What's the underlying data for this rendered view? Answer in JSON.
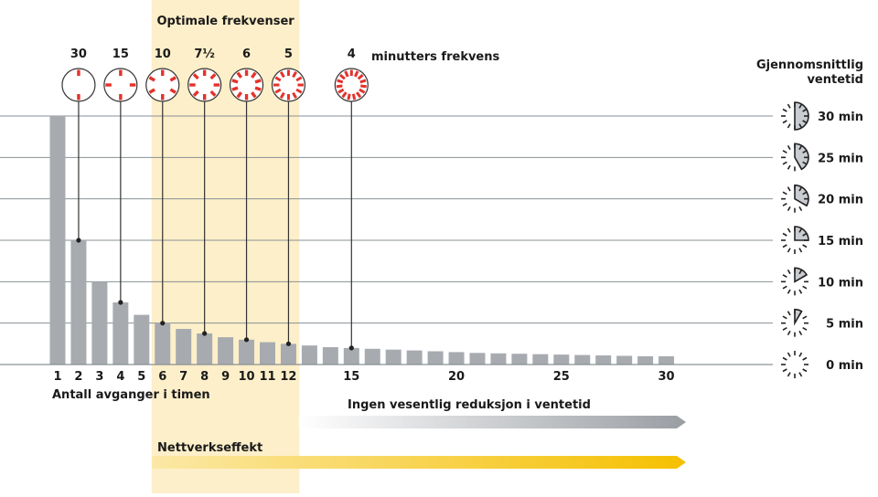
{
  "chart_data": {
    "type": "bar",
    "title": "",
    "xlabel": "Antall avganger i timen",
    "ylabel": "Gjennomsnittlig ventetid",
    "ylim": [
      0,
      30
    ],
    "x": [
      1,
      2,
      3,
      4,
      5,
      6,
      7,
      8,
      9,
      10,
      11,
      12,
      13,
      14,
      15,
      16,
      17,
      18,
      19,
      20,
      21,
      22,
      23,
      24,
      25,
      26,
      27,
      28,
      29,
      30
    ],
    "values": [
      30,
      15,
      10,
      7.5,
      6,
      5,
      4.3,
      3.75,
      3.3,
      3,
      2.7,
      2.5,
      2.3,
      2.1,
      2,
      1.9,
      1.8,
      1.7,
      1.6,
      1.5,
      1.4,
      1.35,
      1.3,
      1.25,
      1.2,
      1.15,
      1.1,
      1.05,
      1.0,
      1.0
    ],
    "x_ticks": [
      "1",
      "2",
      "3",
      "4",
      "5",
      "6",
      "7",
      "8",
      "9",
      "10",
      "11",
      "12",
      "15",
      "20",
      "25",
      "30"
    ],
    "y_ticks": [
      "0 min",
      "5 min",
      "10 min",
      "15 min",
      "20 min",
      "25 min",
      "30 min"
    ],
    "y_tick_values": [
      0,
      5,
      10,
      15,
      20,
      25,
      30
    ],
    "grid": true,
    "bar_color": "#a7abb0",
    "highlight_band": {
      "from": 6,
      "to": 12,
      "label": "Optimale frekvenser",
      "color": "#fdefc9"
    },
    "frequency_markers": [
      {
        "label": "30",
        "x": 2,
        "y": 15,
        "spokes": 2
      },
      {
        "label": "15",
        "x": 4,
        "y": 7.5,
        "spokes": 4
      },
      {
        "label": "10",
        "x": 6,
        "y": 5,
        "spokes": 6
      },
      {
        "label": "7½",
        "x": 8,
        "y": 3.75,
        "spokes": 8
      },
      {
        "label": "6",
        "x": 10,
        "y": 3,
        "spokes": 10
      },
      {
        "label": "5",
        "x": 12,
        "y": 2.5,
        "spokes": 12
      },
      {
        "label": "4",
        "x": 15,
        "y": 2,
        "spokes": 15
      }
    ],
    "marker_caption": "minutters frekvens",
    "arrows": [
      {
        "label": "Ingen vesentlig reduksjon i ventetid",
        "from": 12.5,
        "to": 30.5,
        "color_start": "#ffffff",
        "color_end": "#9a9ea3"
      },
      {
        "label": "Nettverkseffekt",
        "from": 5.5,
        "to": 30.5,
        "color_start": "#fbe8a6",
        "color_end": "#f5c000"
      }
    ],
    "colors": {
      "marker_red": "#e3322b",
      "grid": "#8a9095",
      "text": "#1a1a1a"
    }
  }
}
